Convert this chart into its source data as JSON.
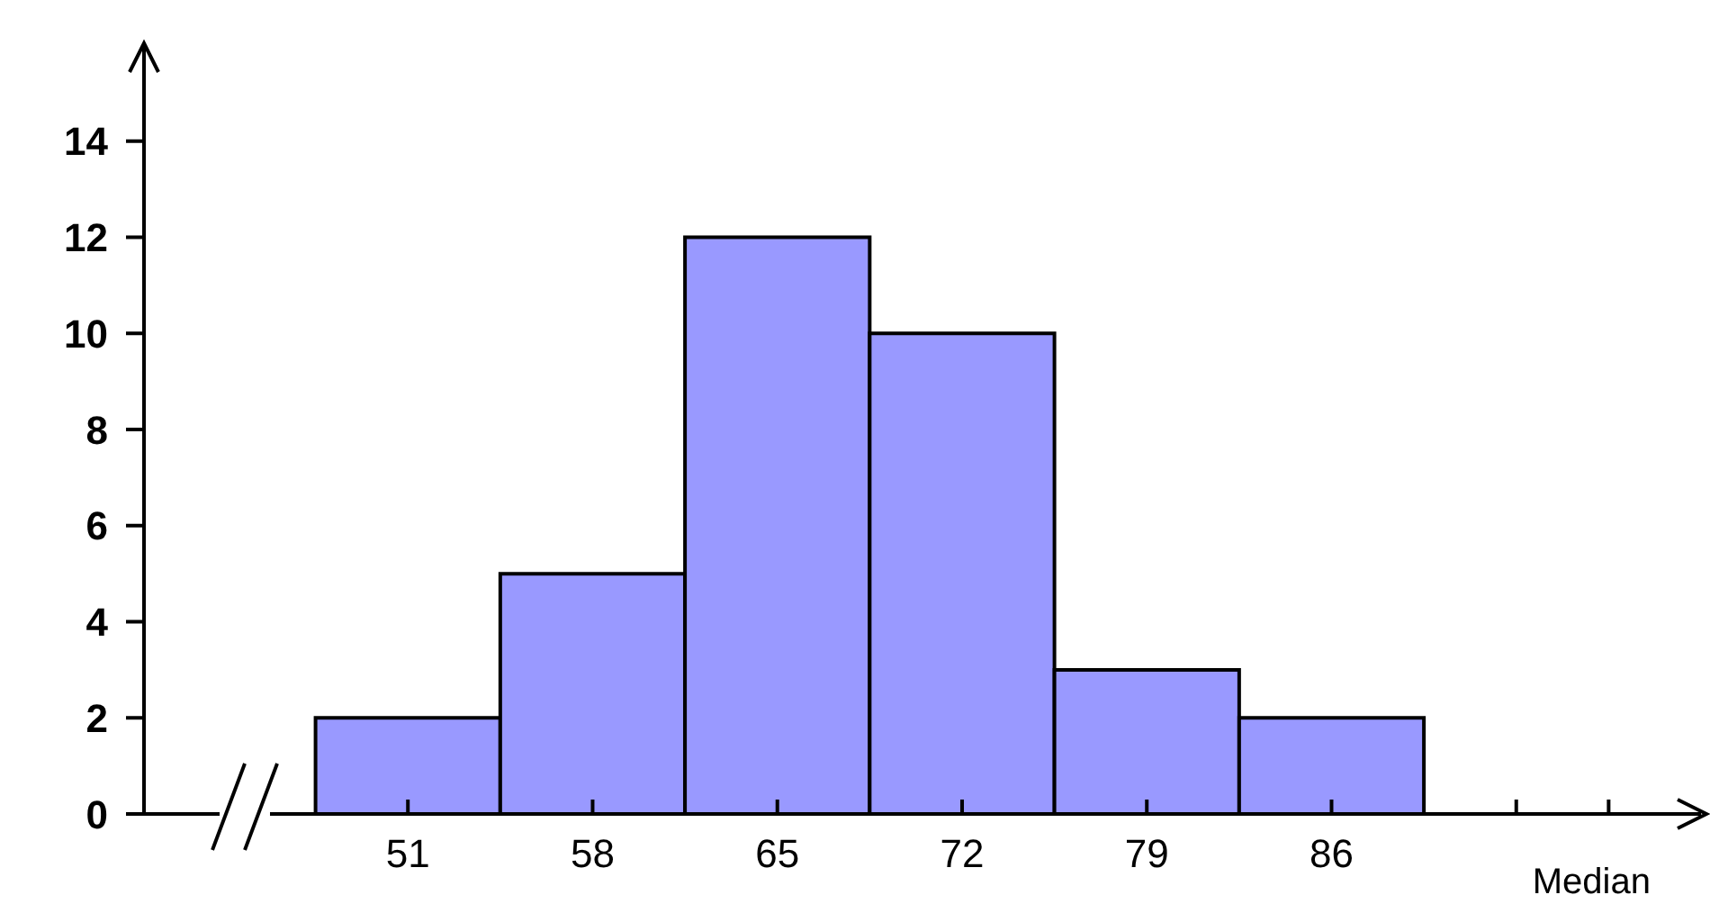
{
  "chart_data": {
    "type": "histogram",
    "xlabel": "Median",
    "bins": [
      47.5,
      54.5,
      61.5,
      68.5,
      75.5,
      82.5,
      89.5
    ],
    "values": [
      2,
      5,
      12,
      10,
      3,
      2
    ],
    "color": "#9999ff",
    "xlim": [
      41,
      100
    ],
    "xticks": [
      51,
      58,
      65,
      72,
      79,
      86,
      {
        "value": 93,
        "label": null
      },
      {
        "value": 96.5,
        "label": null
      }
    ],
    "ylim": [
      0,
      16
    ],
    "yticks": [
      0,
      2,
      4,
      6,
      8,
      10,
      12,
      14
    ],
    "grid": false
  }
}
